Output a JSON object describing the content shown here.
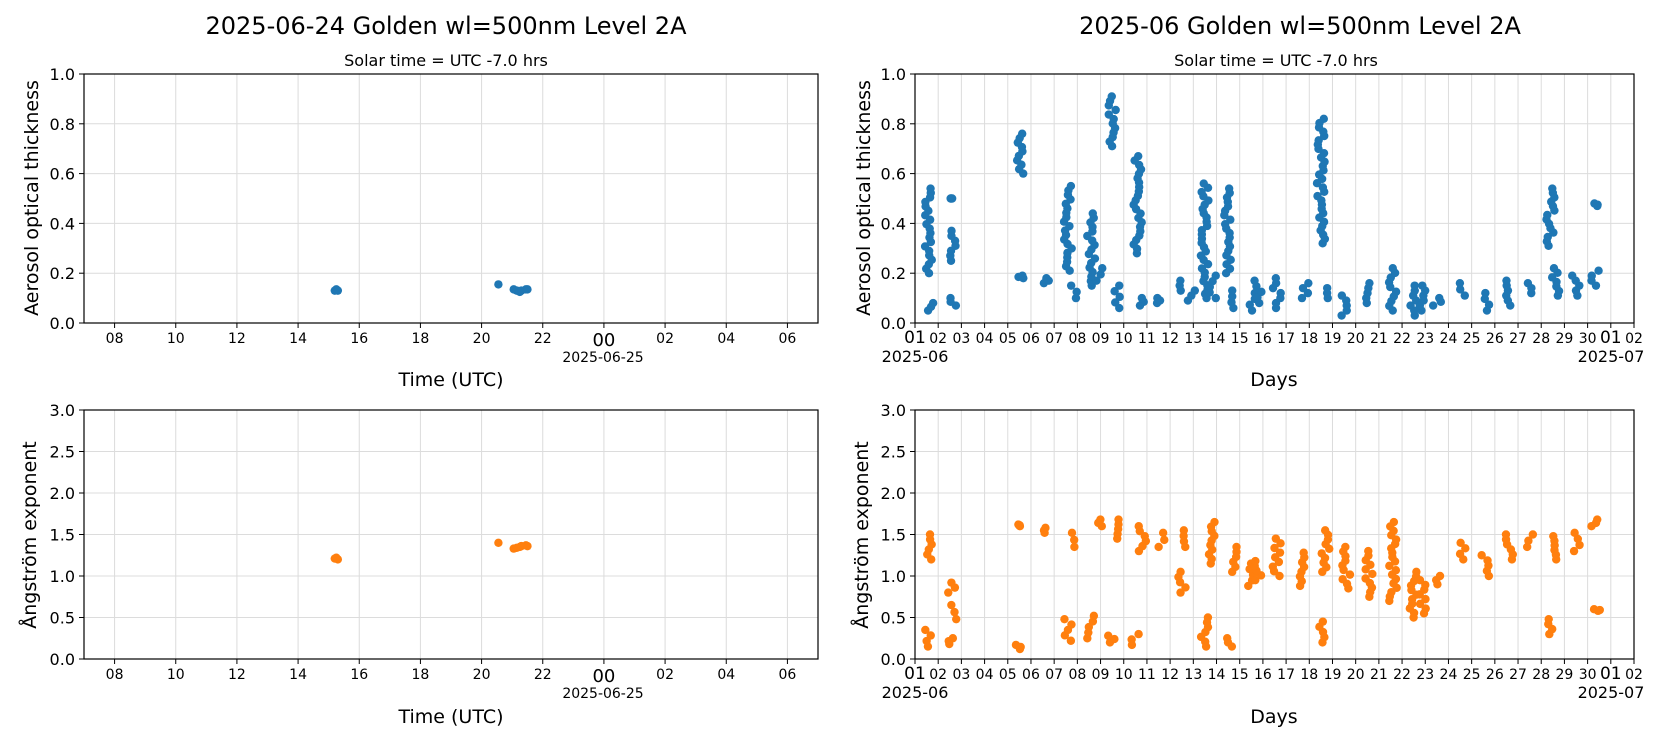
{
  "colors": {
    "aod": "#1f77b4",
    "angstrom": "#ff7f0e"
  },
  "chart_data": [
    {
      "id": "daily-aod",
      "type": "scatter",
      "title": "2025-06-24  Golden  wl=500nm  Level 2A",
      "subtitle": "Solar time = UTC -7.0 hrs",
      "xlabel": "Time (UTC)",
      "ylabel": "Aerosol optical thickness",
      "ylim": [
        0,
        1.0
      ],
      "yticks": [
        "0.0",
        "0.2",
        "0.4",
        "0.6",
        "0.8",
        "1.0"
      ],
      "xlim_hours": [
        7,
        31
      ],
      "xticks": [
        "08",
        "10",
        "12",
        "14",
        "16",
        "18",
        "20",
        "22",
        "00",
        "02",
        "04",
        "06"
      ],
      "date_label": "2025-06-25",
      "grid": true,
      "series": [
        {
          "x": [
            15.2,
            15.25,
            15.3,
            20.55,
            21.05,
            21.15,
            21.25,
            21.3,
            21.45,
            21.5
          ],
          "y": [
            0.13,
            0.135,
            0.13,
            0.155,
            0.135,
            0.13,
            0.125,
            0.13,
            0.135,
            0.135
          ]
        }
      ]
    },
    {
      "id": "monthly-aod",
      "type": "scatter",
      "title": "2025-06  Golden  wl=500nm  Level 2A",
      "subtitle": "Solar time = UTC -7.0 hrs",
      "xlabel": "Days",
      "ylabel": "Aerosol optical thickness",
      "ylim": [
        0,
        1.0
      ],
      "yticks": [
        "0.0",
        "0.2",
        "0.4",
        "0.6",
        "0.8",
        "1.0"
      ],
      "xlim_days": [
        1,
        32
      ],
      "xticks": [
        "01",
        "02",
        "03",
        "04",
        "05",
        "06",
        "07",
        "08",
        "09",
        "10",
        "11",
        "12",
        "13",
        "14",
        "15",
        "16",
        "17",
        "18",
        "19",
        "20",
        "21",
        "22",
        "23",
        "24",
        "25",
        "26",
        "27",
        "28",
        "29",
        "30",
        "01",
        "02"
      ],
      "date_labels": [
        "2025-06",
        "2025-07"
      ],
      "grid": true,
      "clusters": [
        [
          1.55,
          0.2,
          0.54
        ],
        [
          1.7,
          0.05,
          0.08
        ],
        [
          2.6,
          0.25,
          0.37
        ],
        [
          2.65,
          0.07,
          0.1
        ],
        [
          2.6,
          0.5,
          0.5
        ],
        [
          5.5,
          0.6,
          0.76
        ],
        [
          5.6,
          0.18,
          0.19
        ],
        [
          6.7,
          0.16,
          0.18
        ],
        [
          7.6,
          0.21,
          0.55
        ],
        [
          7.9,
          0.1,
          0.15
        ],
        [
          8.6,
          0.15,
          0.44
        ],
        [
          8.9,
          0.17,
          0.22
        ],
        [
          9.5,
          0.71,
          0.91
        ],
        [
          9.7,
          0.06,
          0.15
        ],
        [
          10.6,
          0.28,
          0.67
        ],
        [
          10.8,
          0.07,
          0.1
        ],
        [
          11.5,
          0.08,
          0.1
        ],
        [
          12.5,
          0.13,
          0.17
        ],
        [
          12.9,
          0.09,
          0.13
        ],
        [
          13.5,
          0.1,
          0.56
        ],
        [
          13.8,
          0.1,
          0.19
        ],
        [
          14.5,
          0.2,
          0.54
        ],
        [
          14.7,
          0.06,
          0.13
        ],
        [
          15.5,
          0.05,
          0.12
        ],
        [
          15.8,
          0.08,
          0.17
        ],
        [
          16.6,
          0.06,
          0.18
        ],
        [
          17.8,
          0.1,
          0.16
        ],
        [
          18.5,
          0.32,
          0.82
        ],
        [
          18.7,
          0.1,
          0.14
        ],
        [
          19.5,
          0.03,
          0.11
        ],
        [
          20.6,
          0.08,
          0.16
        ],
        [
          21.6,
          0.05,
          0.22
        ],
        [
          22.5,
          0.03,
          0.15
        ],
        [
          22.9,
          0.05,
          0.15
        ],
        [
          23.5,
          0.07,
          0.1
        ],
        [
          24.6,
          0.11,
          0.16
        ],
        [
          25.6,
          0.05,
          0.12
        ],
        [
          26.5,
          0.07,
          0.17
        ],
        [
          27.5,
          0.12,
          0.16
        ],
        [
          28.4,
          0.31,
          0.54
        ],
        [
          28.6,
          0.11,
          0.22
        ],
        [
          29.5,
          0.11,
          0.19
        ],
        [
          30.3,
          0.15,
          0.21
        ],
        [
          30.45,
          0.47,
          0.48
        ]
      ]
    },
    {
      "id": "daily-angstrom",
      "type": "scatter",
      "title": "",
      "xlabel": "Time (UTC)",
      "ylabel": "Ångström exponent",
      "ylim": [
        0,
        3.0
      ],
      "yticks": [
        "0.0",
        "0.5",
        "1.0",
        "1.5",
        "2.0",
        "2.5",
        "3.0"
      ],
      "xlim_hours": [
        7,
        31
      ],
      "xticks": [
        "08",
        "10",
        "12",
        "14",
        "16",
        "18",
        "20",
        "22",
        "00",
        "02",
        "04",
        "06"
      ],
      "date_label": "2025-06-25",
      "grid": true,
      "series": [
        {
          "x": [
            15.2,
            15.25,
            15.3,
            20.55,
            21.05,
            21.15,
            21.25,
            21.3,
            21.45,
            21.5
          ],
          "y": [
            1.21,
            1.22,
            1.2,
            1.4,
            1.33,
            1.34,
            1.35,
            1.36,
            1.37,
            1.36
          ]
        }
      ]
    },
    {
      "id": "monthly-angstrom",
      "type": "scatter",
      "title": "",
      "xlabel": "Days",
      "ylabel": "Ångström exponent",
      "ylim": [
        0,
        3.0
      ],
      "yticks": [
        "0.0",
        "0.5",
        "1.0",
        "1.5",
        "2.0",
        "2.5",
        "3.0"
      ],
      "xlim_days": [
        1,
        32
      ],
      "xticks": [
        "01",
        "02",
        "03",
        "04",
        "05",
        "06",
        "07",
        "08",
        "09",
        "10",
        "11",
        "12",
        "13",
        "14",
        "15",
        "16",
        "17",
        "18",
        "19",
        "20",
        "21",
        "22",
        "23",
        "24",
        "25",
        "26",
        "27",
        "28",
        "29",
        "30",
        "01",
        "02"
      ],
      "date_labels": [
        "2025-06",
        "2025-07"
      ],
      "grid": true,
      "clusters": [
        [
          1.55,
          1.2,
          1.5
        ],
        [
          1.6,
          0.15,
          0.35
        ],
        [
          2.6,
          0.8,
          0.92
        ],
        [
          2.65,
          0.48,
          0.65
        ],
        [
          2.6,
          0.18,
          0.25
        ],
        [
          5.5,
          0.12,
          0.17
        ],
        [
          5.6,
          1.6,
          1.62
        ],
        [
          6.7,
          1.52,
          1.58
        ],
        [
          7.6,
          0.22,
          0.48
        ],
        [
          7.8,
          1.35,
          1.52
        ],
        [
          8.6,
          0.25,
          0.52
        ],
        [
          9.0,
          1.6,
          1.68
        ],
        [
          9.5,
          0.2,
          0.28
        ],
        [
          9.8,
          1.45,
          1.68
        ],
        [
          10.5,
          0.17,
          0.3
        ],
        [
          10.8,
          1.3,
          1.6
        ],
        [
          11.6,
          1.35,
          1.52
        ],
        [
          12.5,
          0.8,
          1.05
        ],
        [
          12.6,
          1.35,
          1.55
        ],
        [
          13.5,
          0.15,
          0.5
        ],
        [
          13.8,
          1.15,
          1.65
        ],
        [
          14.5,
          0.15,
          0.25
        ],
        [
          14.7,
          1.05,
          1.35
        ],
        [
          15.5,
          0.88,
          1.15
        ],
        [
          15.8,
          0.95,
          1.18
        ],
        [
          16.6,
          1.0,
          1.45
        ],
        [
          17.7,
          0.88,
          1.28
        ],
        [
          18.5,
          0.2,
          0.45
        ],
        [
          18.7,
          1.05,
          1.55
        ],
        [
          19.6,
          0.85,
          1.35
        ],
        [
          20.6,
          0.75,
          1.3
        ],
        [
          21.6,
          0.7,
          1.65
        ],
        [
          22.5,
          0.5,
          1.05
        ],
        [
          22.9,
          0.55,
          0.95
        ],
        [
          23.5,
          0.9,
          1.0
        ],
        [
          24.6,
          1.2,
          1.4
        ],
        [
          25.6,
          1.0,
          1.25
        ],
        [
          26.6,
          1.2,
          1.5
        ],
        [
          27.5,
          1.35,
          1.5
        ],
        [
          28.4,
          0.3,
          0.48
        ],
        [
          28.6,
          1.2,
          1.48
        ],
        [
          29.5,
          1.3,
          1.52
        ],
        [
          30.3,
          1.6,
          1.68
        ],
        [
          30.45,
          0.58,
          0.6
        ]
      ]
    }
  ]
}
